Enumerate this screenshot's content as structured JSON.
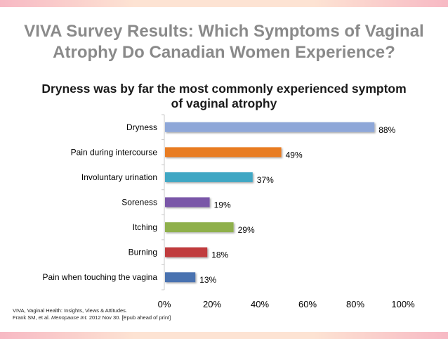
{
  "slide": {
    "title_line1": "VIVA Survey Results: Which Symptoms of Vaginal",
    "title_line2": "Atrophy Do Canadian Women Experience?",
    "subtitle_line1": "Dryness was by far the most commonly experienced symptom",
    "subtitle_line2": "of vaginal atrophy",
    "footnote_line1": "VIVA, Vaginal Health: Insights, Views & Attitudes.",
    "footnote_line2_pre": "Frank SM, et al. ",
    "footnote_line2_journal": "Menopause Int.",
    "footnote_line2_post": " 2012 Nov 30. [Epub ahead of print]"
  },
  "chart_data": {
    "type": "bar",
    "orientation": "horizontal",
    "categories": [
      "Dryness",
      "Pain during intercourse",
      "Involuntary urination",
      "Soreness",
      "Itching",
      "Burning",
      "Pain when touching the vagina"
    ],
    "values": [
      88,
      49,
      37,
      19,
      29,
      18,
      13
    ],
    "value_labels": [
      "88%",
      "49%",
      "37%",
      "19%",
      "29%",
      "18%",
      "13%"
    ],
    "colors": [
      "#8ea7d8",
      "#e87b22",
      "#3fa7c4",
      "#7a56a8",
      "#8fb04c",
      "#c03a3e",
      "#4a72b0"
    ],
    "xlim": [
      0,
      100
    ],
    "xticks": [
      "0%",
      "20%",
      "40%",
      "60%",
      "80%",
      "100%"
    ],
    "grid": false,
    "legend": "none"
  }
}
